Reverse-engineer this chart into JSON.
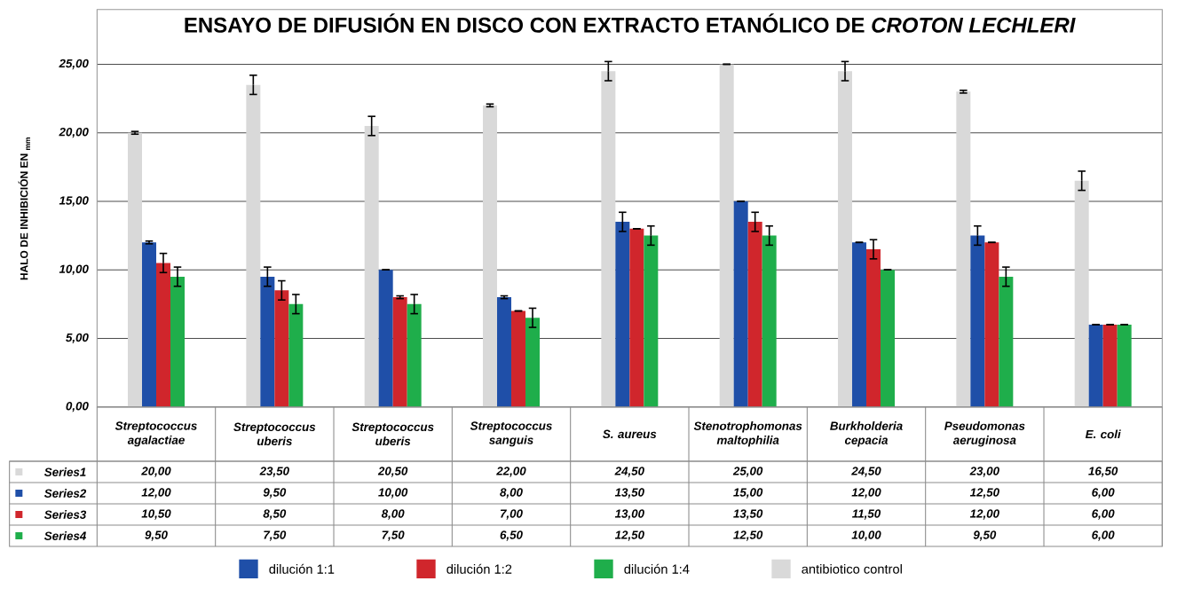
{
  "chart_data": {
    "type": "bar",
    "title": "ENSAYO DE DIFUSIÓN EN DISCO CON EXTRACTO ETANÓLICO DE *CROTON LECHLERI*",
    "ylabel": "HALO DE INHIBICIÓN EN $_{mm}$",
    "categories": [
      "Streptococcus agalactiae",
      "Streptococcus uberis",
      "Streptococcus uberis",
      "Streptococcus sanguis",
      "S. aureus",
      "Stenotrophomonas maltophilia",
      "Burkholderia cepacia",
      "Pseudomonas aeruginosa",
      "E. coli"
    ],
    "series": [
      {
        "name": "antibiotico control",
        "color": "#d9d9d9",
        "values": [
          20.0,
          23.5,
          20.5,
          22.0,
          24.5,
          25.0,
          24.5,
          23.0,
          16.5
        ],
        "errors": [
          0.1,
          0.7,
          0.7,
          0.1,
          0.7,
          null,
          0.7,
          0.1,
          0.7
        ],
        "value_labels": [
          "20,00",
          "23,50",
          "20,50",
          "22,00",
          "24,50",
          "25,00",
          "24,50",
          "23,00",
          "16,50"
        ]
      },
      {
        "name": "dilución 1:1",
        "color": "#1f4fa8",
        "values": [
          12.0,
          9.5,
          10.0,
          8.0,
          13.5,
          15.0,
          12.0,
          12.5,
          6.0
        ],
        "errors": [
          0.1,
          0.7,
          null,
          0.1,
          0.7,
          null,
          null,
          0.7,
          null
        ],
        "value_labels": [
          "12,00",
          "9,50",
          "10,00",
          "8,00",
          "13,50",
          "15,00",
          "12,00",
          "12,50",
          "6,00"
        ]
      },
      {
        "name": "dilución 1:2",
        "color": "#d0262c",
        "values": [
          10.5,
          8.5,
          8.0,
          7.0,
          13.0,
          13.5,
          11.5,
          12.0,
          6.0
        ],
        "errors": [
          0.7,
          0.7,
          0.1,
          null,
          null,
          0.7,
          0.7,
          null,
          null
        ],
        "value_labels": [
          "10,50",
          "8,50",
          "8,00",
          "7,00",
          "13,00",
          "13,50",
          "11,50",
          "12,00",
          "6,00"
        ]
      },
      {
        "name": "dilución 1:4",
        "color": "#1fae4b",
        "values": [
          9.5,
          7.5,
          7.5,
          6.5,
          12.5,
          12.5,
          10.0,
          9.5,
          6.0
        ],
        "errors": [
          0.7,
          0.7,
          0.7,
          0.7,
          0.7,
          0.7,
          null,
          0.7,
          null
        ],
        "value_labels": [
          "9,50",
          "7,50",
          "7,50",
          "6,50",
          "12,50",
          "12,50",
          "10,00",
          "9,50",
          "6,00"
        ]
      }
    ],
    "annotations": [
      "Series1",
      "Series2",
      "Series3",
      "Series4"
    ],
    "ylim": [
      0,
      29
    ],
    "yticks": [
      {
        "value": 0,
        "label": "0,00"
      },
      {
        "value": 5,
        "label": "5,00"
      },
      {
        "value": 10,
        "label": "10,00"
      },
      {
        "value": 15,
        "label": "15,00"
      },
      {
        "value": 20,
        "label": "20,00"
      },
      {
        "value": 25,
        "label": "25,00"
      }
    ],
    "grid": "y",
    "legend": "bottom"
  }
}
